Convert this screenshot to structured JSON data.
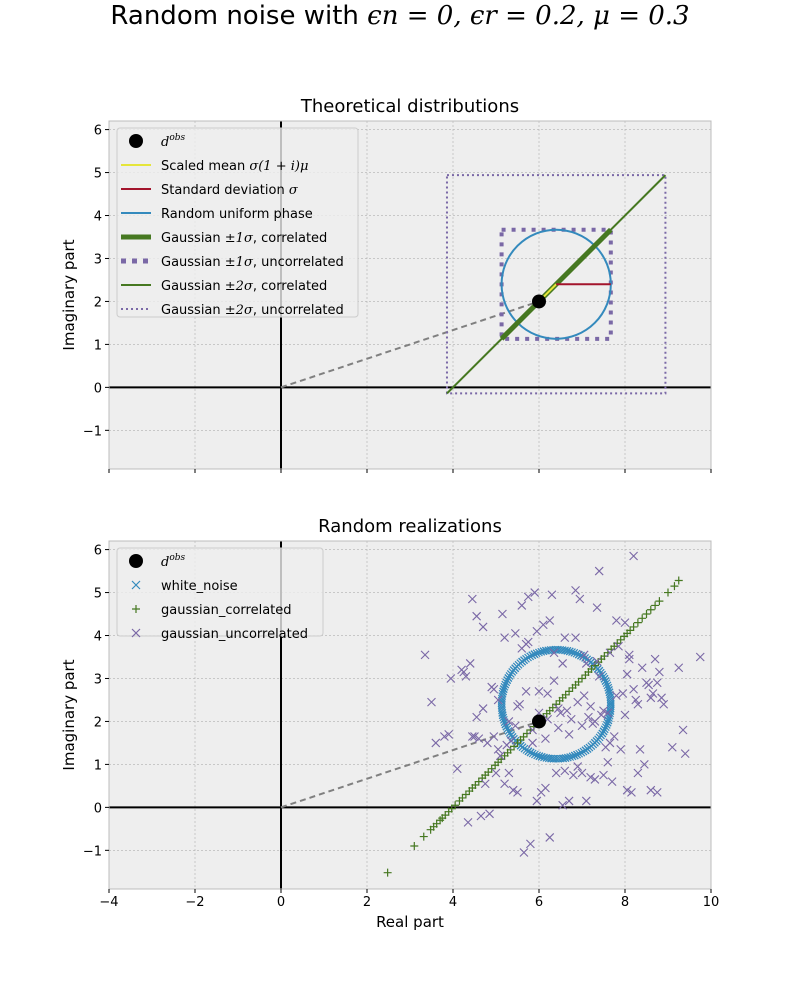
{
  "suptitle": {
    "prefix": "Random noise with ",
    "math": "ϵn = 0, ϵr = 0.2, μ = 0.3"
  },
  "colors": {
    "black": "#000000",
    "yellow": "#e5e53a",
    "red": "#a3142c",
    "blue": "#348abd",
    "green": "#467821",
    "purple": "#7a68a6",
    "gray": "#808080",
    "axes_bg": "#eeeeee",
    "grid": "#b0b0b0"
  },
  "chart_data": [
    {
      "type": "line",
      "title": "Theoretical distributions",
      "xlabel": "",
      "ylabel": "Imaginary part",
      "xlim": [
        -4,
        10
      ],
      "ylim": [
        -1.9,
        6.2
      ],
      "xticks": [
        -4,
        -2,
        0,
        2,
        4,
        6,
        8,
        10
      ],
      "yticks": [
        -1,
        0,
        1,
        2,
        3,
        4,
        5,
        6
      ],
      "show_xticklabels": false,
      "grid": true,
      "legend_position": "top-left",
      "d_obs": [
        6,
        2
      ],
      "scaled_mean_segment": [
        [
          6,
          2
        ],
        [
          6.4,
          2.4
        ]
      ],
      "std_segment": [
        [
          6.4,
          2.4
        ],
        [
          7.67,
          2.4
        ]
      ],
      "uniform_phase_circle": {
        "center": [
          6.4,
          2.4
        ],
        "radius": 1.27
      },
      "gaussian_1sigma_correlated": [
        [
          5.13,
          1.13
        ],
        [
          7.67,
          3.67
        ]
      ],
      "gaussian_1sigma_uncorrelated_box": [
        [
          5.13,
          1.13
        ],
        [
          7.67,
          3.67
        ]
      ],
      "gaussian_2sigma_correlated": [
        [
          3.86,
          -0.14
        ],
        [
          8.94,
          4.94
        ]
      ],
      "gaussian_2sigma_uncorrelated_box": [
        [
          3.86,
          -0.14
        ],
        [
          8.94,
          4.94
        ]
      ],
      "dashed_line": [
        [
          0,
          0
        ],
        [
          6,
          2
        ]
      ],
      "legend": [
        {
          "label": "d",
          "sup": "obs",
          "style": "dot",
          "color": "#000000"
        },
        {
          "label": "Scaled mean ",
          "math": "σ(1 + i)μ",
          "style": "line",
          "color": "#e5e53a"
        },
        {
          "label": "Standard deviation ",
          "math": "σ",
          "style": "line",
          "color": "#a3142c"
        },
        {
          "label": "Random uniform phase",
          "math": "",
          "style": "line",
          "color": "#348abd"
        },
        {
          "label": "Gaussian ",
          "math": "±1σ",
          "suffix": ", correlated",
          "style": "thick",
          "color": "#467821"
        },
        {
          "label": "Gaussian ",
          "math": "±1σ",
          "suffix": ", uncorrelated",
          "style": "dotted-thick",
          "color": "#7a68a6"
        },
        {
          "label": "Gaussian ",
          "math": "±2σ",
          "suffix": ", correlated",
          "style": "line",
          "color": "#467821"
        },
        {
          "label": "Gaussian ",
          "math": "±2σ",
          "suffix": ", uncorrelated",
          "style": "dotted",
          "color": "#7a68a6"
        }
      ]
    },
    {
      "type": "scatter",
      "title": "Random realizations",
      "xlabel": "Real part",
      "ylabel": "Imaginary part",
      "xlim": [
        -4,
        10
      ],
      "ylim": [
        -1.9,
        6.2
      ],
      "xticks": [
        -4,
        -2,
        0,
        2,
        4,
        6,
        8,
        10
      ],
      "yticks": [
        -1,
        0,
        1,
        2,
        3,
        4,
        5,
        6
      ],
      "show_xticklabels": true,
      "grid": true,
      "legend_position": "top-left",
      "d_obs": [
        6,
        2
      ],
      "dashed_line": [
        [
          0,
          0
        ],
        [
          6,
          2
        ]
      ],
      "white_noise": {
        "center": [
          6.4,
          2.4
        ],
        "radius": 1.27,
        "count": 200
      },
      "gaussian_correlated": {
        "x": [
          2.48,
          3.1,
          3.32,
          3.48,
          3.55,
          3.62,
          3.7,
          3.75,
          3.82,
          3.9,
          3.97,
          4.05,
          4.15,
          4.22,
          4.3,
          4.38,
          4.45,
          4.52,
          4.6,
          4.68,
          4.75,
          4.82,
          4.9,
          4.98,
          5.05,
          5.12,
          5.2,
          5.27,
          5.34,
          5.42,
          5.5,
          5.57,
          5.64,
          5.72,
          5.8,
          5.88,
          5.95,
          6.02,
          6.1,
          6.18,
          6.25,
          6.32,
          6.4,
          6.48,
          6.55,
          6.62,
          6.7,
          6.78,
          6.85,
          6.92,
          7.0,
          7.08,
          7.15,
          7.22,
          7.3,
          7.38,
          7.45,
          7.52,
          7.6,
          7.68,
          7.75,
          7.82,
          7.9,
          7.98,
          8.05,
          8.12,
          8.2,
          8.3,
          8.4,
          8.5,
          8.6,
          8.7,
          8.8,
          9.0,
          9.15,
          9.25
        ],
        "y": [
          -1.52,
          -0.9,
          -0.68,
          -0.52,
          -0.45,
          -0.38,
          -0.3,
          -0.25,
          -0.18,
          -0.1,
          -0.03,
          0.05,
          0.15,
          0.22,
          0.3,
          0.38,
          0.45,
          0.52,
          0.6,
          0.68,
          0.75,
          0.82,
          0.9,
          0.98,
          1.05,
          1.12,
          1.2,
          1.27,
          1.34,
          1.42,
          1.5,
          1.57,
          1.64,
          1.72,
          1.8,
          1.88,
          1.95,
          2.02,
          2.1,
          2.18,
          2.25,
          2.32,
          2.4,
          2.48,
          2.55,
          2.62,
          2.7,
          2.78,
          2.85,
          2.92,
          3.0,
          3.08,
          3.15,
          3.22,
          3.3,
          3.38,
          3.45,
          3.52,
          3.6,
          3.68,
          3.75,
          3.82,
          3.9,
          3.98,
          4.05,
          4.12,
          4.2,
          4.3,
          4.4,
          4.5,
          4.6,
          4.7,
          4.8,
          5.0,
          5.15,
          5.28
        ]
      },
      "gaussian_uncorrelated": {
        "x": [
          8.2,
          9.75,
          3.35,
          3.5,
          4.45,
          4.55,
          4.7,
          5.15,
          5.6,
          5.75,
          5.9,
          6.3,
          6.85,
          6.95,
          7.35,
          7.4,
          7.8,
          8.0,
          8.1,
          8.7,
          8.8,
          9.25,
          9.35,
          9.4,
          6.5,
          6.6,
          6.9,
          4.35,
          4.5,
          4.65,
          4.75,
          4.85,
          5.0,
          5.1,
          5.2,
          5.3,
          5.4,
          5.5,
          5.65,
          5.8,
          5.95,
          6.05,
          6.15,
          6.25,
          6.4,
          6.55,
          6.7,
          6.8,
          7.0,
          7.1,
          7.2,
          7.3,
          7.5,
          7.6,
          7.7,
          7.9,
          8.05,
          8.15,
          8.3,
          8.45,
          8.6,
          8.75,
          8.9,
          9.1,
          3.6,
          3.8,
          3.95,
          4.1,
          4.2,
          4.3,
          4.45,
          4.6,
          4.8,
          4.95,
          5.05,
          5.25,
          5.35,
          5.45,
          5.55,
          5.7,
          5.85,
          6.0,
          6.2,
          6.35,
          6.45,
          6.65,
          6.75,
          7.05,
          7.15,
          7.25,
          7.45,
          7.55,
          7.65,
          7.75,
          7.95,
          8.25,
          8.35,
          8.55,
          8.65,
          8.85,
          5.6,
          5.75,
          6.25,
          6.55,
          7.05,
          7.35,
          8.05,
          8.75,
          4.95,
          5.2,
          5.45,
          5.7,
          5.95,
          6.1,
          6.35,
          6.6,
          6.85,
          7.1,
          7.4,
          7.65,
          7.85,
          8.1,
          8.4,
          4.55,
          4.7,
          5.05,
          5.3,
          6.0,
          6.2,
          6.45,
          6.9,
          7.2,
          7.5,
          7.8,
          8.2,
          8.5,
          3.9,
          4.25,
          4.4,
          4.9,
          5.5,
          5.85,
          6.15,
          6.7,
          7.0,
          7.3,
          7.6,
          8.0,
          8.3,
          8.6
        ],
        "y": [
          5.85,
          3.5,
          3.55,
          2.45,
          4.85,
          4.45,
          4.2,
          4.5,
          4.7,
          4.9,
          5.0,
          4.95,
          5.05,
          4.85,
          4.65,
          5.5,
          4.35,
          4.3,
          3.45,
          3.45,
          3.15,
          3.25,
          1.8,
          1.25,
          2.2,
          0.85,
          0.95,
          -0.35,
          1.65,
          -0.2,
          0.55,
          -0.15,
          0.8,
          1.2,
          0.55,
          0.8,
          0.4,
          0.35,
          -1.05,
          -0.85,
          0.15,
          0.35,
          0.45,
          -0.7,
          0.8,
          0.05,
          0.15,
          0.75,
          0.8,
          0.15,
          0.7,
          0.65,
          0.75,
          1.05,
          0.6,
          1.35,
          0.4,
          0.35,
          0.8,
          1.0,
          0.4,
          0.35,
          2.4,
          1.4,
          1.5,
          1.65,
          3.0,
          0.9,
          3.2,
          3.05,
          1.65,
          1.6,
          1.5,
          1.65,
          1.35,
          1.45,
          1.55,
          1.9,
          2.4,
          2.7,
          1.5,
          2.7,
          2.65,
          2.95,
          2.3,
          2.25,
          2.05,
          2.6,
          2.1,
          1.95,
          2.15,
          1.4,
          1.5,
          1.65,
          2.65,
          2.5,
          1.35,
          2.85,
          2.65,
          2.55,
          3.7,
          3.85,
          4.35,
          3.35,
          3.55,
          3.4,
          3.1,
          2.9,
          2.75,
          3.95,
          4.05,
          3.8,
          4.1,
          4.25,
          3.6,
          3.95,
          3.95,
          3.35,
          3.05,
          3.6,
          3.75,
          3.55,
          3.25,
          2.1,
          2.3,
          2.5,
          2.0,
          2.2,
          2.05,
          1.85,
          2.45,
          2.35,
          2.25,
          2.6,
          2.75,
          2.9,
          1.7,
          3.15,
          3.35,
          2.8,
          2.35,
          1.8,
          1.6,
          1.7,
          1.9,
          2.0,
          2.2,
          2.15,
          2.4,
          2.55
        ],
        "count": 150
      },
      "legend": [
        {
          "label": "d",
          "sup": "obs",
          "style": "dot",
          "color": "#000000"
        },
        {
          "label": "white_noise",
          "style": "x",
          "color": "#348abd"
        },
        {
          "label": "gaussian_correlated",
          "style": "plus",
          "color": "#467821"
        },
        {
          "label": "gaussian_uncorrelated",
          "style": "x",
          "color": "#7a68a6"
        }
      ]
    }
  ]
}
